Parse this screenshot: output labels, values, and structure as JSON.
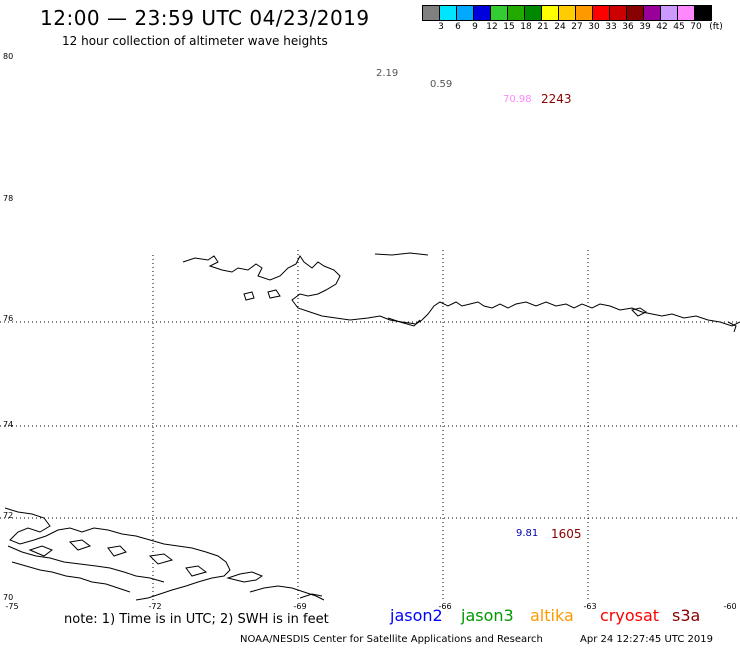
{
  "header": {
    "title": "12:00 — 23:59 UTC 04/23/2019",
    "subtitle": "12 hour collection of altimeter wave heights"
  },
  "legend": {
    "labels": [
      "3",
      "6",
      "9",
      "12",
      "15",
      "18",
      "21",
      "24",
      "27",
      "30",
      "33",
      "36",
      "39",
      "42",
      "45",
      "70"
    ],
    "unit": "(ft)",
    "colors": [
      "#808080",
      "#00e5ff",
      "#00a8ff",
      "#0000dd",
      "#33cc33",
      "#22aa00",
      "#008800",
      "#ffff00",
      "#ffcc00",
      "#ff9900",
      "#ff0000",
      "#cc0000",
      "#880000",
      "#990099",
      "#cc99ff",
      "#ff88ff",
      "#000000"
    ]
  },
  "axes": {
    "lat_labels": [
      "80",
      "78",
      "76",
      "74",
      "72",
      "70"
    ],
    "lon_labels": [
      "-75",
      "-72",
      "-69",
      "-66",
      "-63",
      "-60"
    ]
  },
  "observations": [
    {
      "value": "2.19",
      "color": "#555555"
    },
    {
      "value": "0.59",
      "color": "#555555"
    },
    {
      "value": "70.98",
      "color": "#ff88ff"
    },
    {
      "value": "2243",
      "color": "#880000"
    },
    {
      "value": "9.81",
      "color": "#0000aa"
    },
    {
      "value": "1605",
      "color": "#880000"
    }
  ],
  "footer": {
    "note": "note: 1) Time is in UTC; 2) SWH is in feet",
    "satellites": [
      {
        "name": "jason2",
        "color": "#0000ff"
      },
      {
        "name": "jason3",
        "color": "#009900"
      },
      {
        "name": "altika",
        "color": "#ff9900"
      },
      {
        "name": "cryosat",
        "color": "#ff0000"
      },
      {
        "name": "s3a",
        "color": "#880000"
      }
    ],
    "credit": "NOAA/NESDIS Center for Satellite Applications and Research",
    "timestamp": "Apr 24 12:27:45 UTC 2019"
  }
}
